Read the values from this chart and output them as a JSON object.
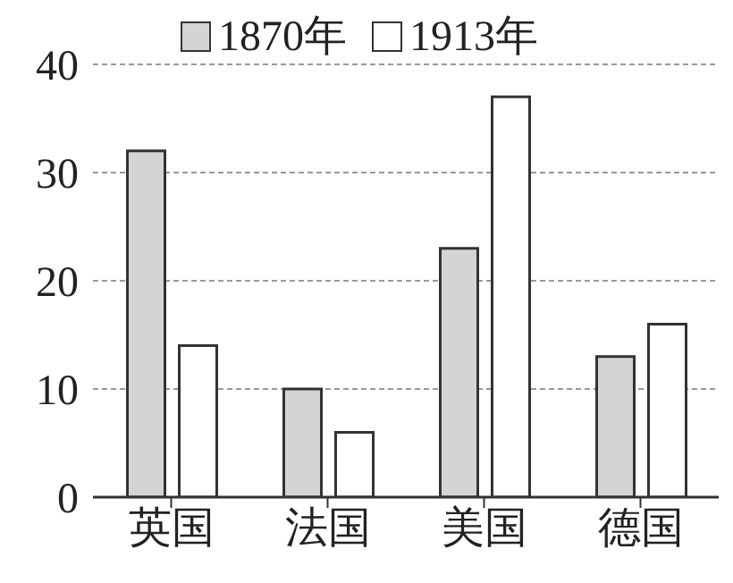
{
  "chart_data": {
    "type": "bar",
    "categories": [
      "英国",
      "法国",
      "美国",
      "德国"
    ],
    "series": [
      {
        "name": "1870年",
        "color": "#d4d4d4",
        "values": [
          32,
          10,
          23,
          13
        ]
      },
      {
        "name": "1913年",
        "color": "#ffffff",
        "values": [
          14,
          6,
          37,
          16
        ]
      }
    ],
    "ylim": [
      0,
      40
    ],
    "yticks": [
      0,
      10,
      20,
      30,
      40
    ],
    "grid": "y",
    "legend": "top"
  }
}
